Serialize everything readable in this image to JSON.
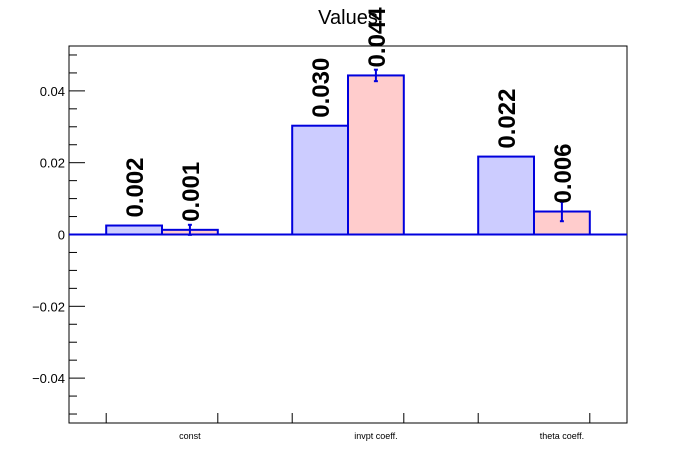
{
  "chart_data": {
    "type": "bar",
    "title": "Values",
    "xlabel": "",
    "ylabel": "",
    "categories": [
      "const",
      "invpt coeff.",
      "theta coeff."
    ],
    "series": [
      {
        "values": [
          0.0025,
          0.0303,
          0.0217
        ],
        "errors": [
          0.0,
          0.0,
          0.0
        ],
        "labels": [
          "0.002",
          "0.030",
          "0.022"
        ],
        "fill": "#ccccff",
        "stroke": "#0000dd"
      },
      {
        "values": [
          0.0013,
          0.0443,
          0.0064
        ],
        "errors": [
          0.0014,
          0.0016,
          0.0027
        ],
        "labels": [
          "0.001",
          "0.044",
          "0.006"
        ],
        "fill": "#ffcccc",
        "stroke": "#0000dd"
      }
    ],
    "ylim": [
      -0.0525,
      0.0525
    ],
    "y_ticks": [
      -0.04,
      -0.02,
      0,
      0.02,
      0.04
    ],
    "y_tick_labels": [
      "−0.04",
      "−0.02",
      "0",
      "0.02",
      "0.04"
    ],
    "y_minor_step": 0.005,
    "grid": false,
    "legend": "none",
    "baseline_color": "#0000dd"
  }
}
